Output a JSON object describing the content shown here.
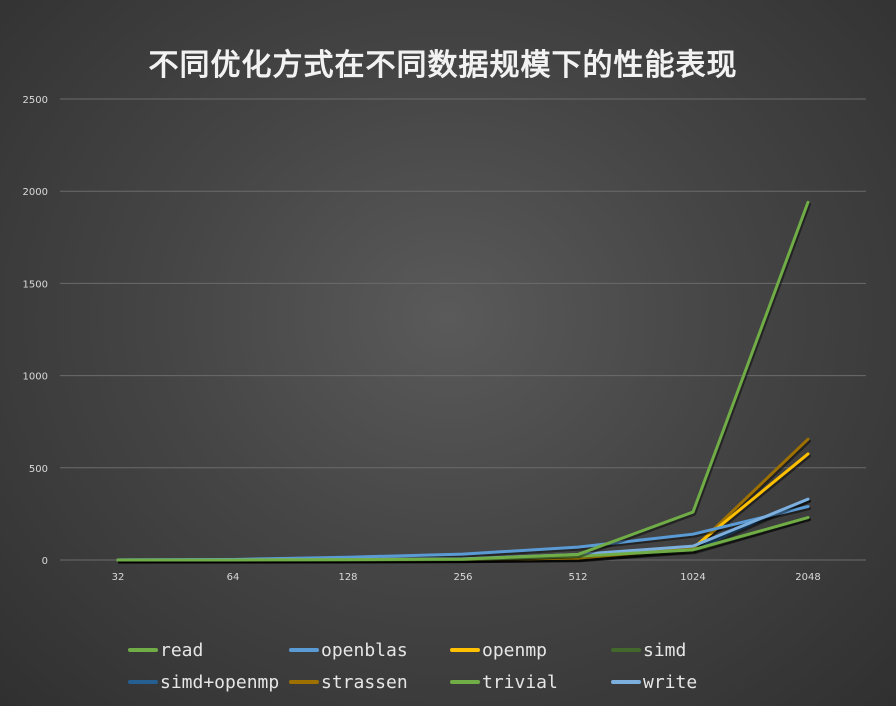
{
  "chart_data": {
    "type": "line",
    "title": "不同优化方式在不同数据规模下的性能表现",
    "xlabel": "",
    "ylabel": "",
    "categories": [
      "32",
      "64",
      "128",
      "256",
      "512",
      "1024",
      "2048"
    ],
    "ylim": [
      0,
      2500
    ],
    "yticks": [
      "0",
      "500",
      "1000",
      "1500",
      "2000",
      "2500"
    ],
    "grid": true,
    "legend_position": "bottom",
    "series": [
      {
        "name": "read",
        "color": "#70ad47",
        "values": [
          0,
          0,
          2,
          5,
          30,
          260,
          1940
        ]
      },
      {
        "name": "openblas",
        "color": "#5b9bd5",
        "values": [
          1,
          3,
          15,
          32,
          70,
          140,
          290
        ]
      },
      {
        "name": "openmp",
        "color": "#ffc000",
        "values": [
          0,
          0,
          1,
          3,
          10,
          65,
          575
        ]
      },
      {
        "name": "simd",
        "color": "#43682b",
        "values": [
          0,
          0,
          1,
          2,
          8,
          50,
          230
        ]
      },
      {
        "name": "simd+openmp",
        "color": "#255e91",
        "values": [
          0,
          0,
          1,
          2,
          6,
          55,
          330
        ]
      },
      {
        "name": "strassen",
        "color": "#9e7000",
        "values": [
          0,
          0,
          1,
          2,
          10,
          60,
          655
        ]
      },
      {
        "name": "trivial",
        "color": "#70ad47",
        "values": [
          0,
          0,
          1,
          3,
          20,
          55,
          230
        ]
      },
      {
        "name": "write",
        "color": "#7cafdd",
        "values": [
          0,
          1,
          3,
          6,
          30,
          75,
          330
        ]
      }
    ]
  }
}
